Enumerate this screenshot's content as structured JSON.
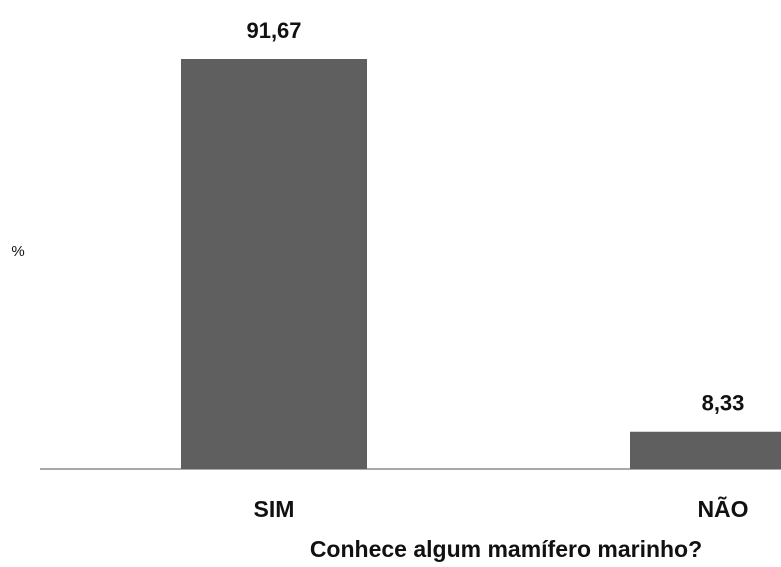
{
  "chart_data": {
    "type": "bar",
    "categories": [
      "SIM",
      "NÃO"
    ],
    "values": [
      91.67,
      8.33
    ],
    "data_labels": [
      "91,67",
      "8,33"
    ],
    "title": "",
    "xlabel": "Conhece algum mamífero marinho?",
    "ylabel": "%",
    "ylim": [
      0,
      91.67
    ],
    "grid": false,
    "legend": "none",
    "bar_color": "#5f5f5f",
    "axis_color": "#8c8c8c"
  }
}
